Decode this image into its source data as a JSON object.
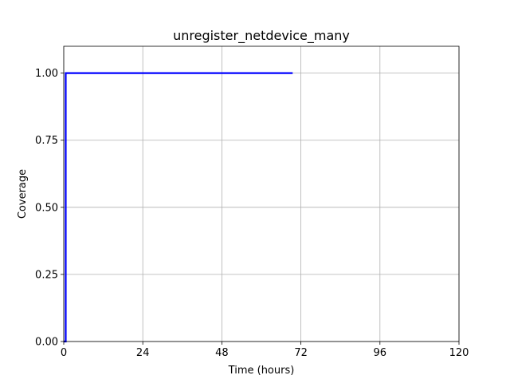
{
  "chart_data": {
    "type": "line",
    "title": "unregister_netdevice_many",
    "xlabel": "Time (hours)",
    "ylabel": "Coverage",
    "xlim": [
      0,
      120
    ],
    "ylim": [
      0,
      1.1
    ],
    "xticks": [
      0,
      24,
      48,
      72,
      96,
      120
    ],
    "yticks": [
      0.0,
      0.25,
      0.5,
      0.75,
      1.0
    ],
    "xtick_labels": [
      "0",
      "24",
      "48",
      "72",
      "96",
      "120"
    ],
    "ytick_labels": [
      "0.00",
      "0.25",
      "0.50",
      "0.75",
      "1.00"
    ],
    "grid": true,
    "series": [
      {
        "color": "#0000ff",
        "x": [
          0,
          0.6,
          0.6,
          69.5
        ],
        "y": [
          0,
          0,
          1.0,
          1.0
        ]
      }
    ]
  }
}
